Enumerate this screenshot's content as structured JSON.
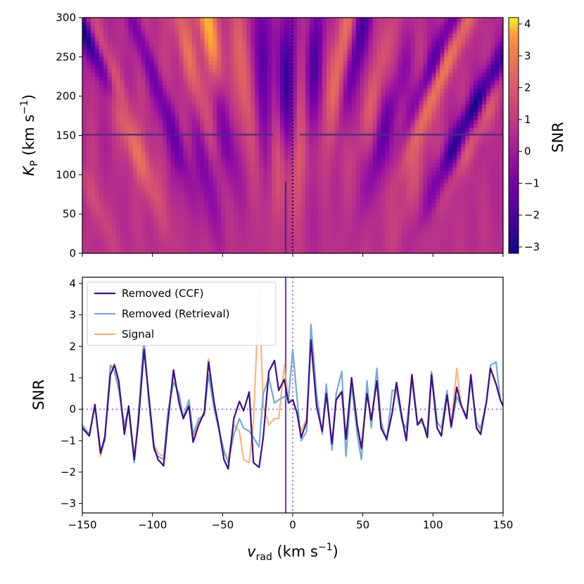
{
  "chart_data": [
    {
      "type": "heatmap",
      "title": "",
      "xlabel": "",
      "ylabel_main": "K",
      "ylabel_sub": "P",
      "ylabel_unit_pre": "(km s",
      "ylabel_unit_sup": "−1",
      "ylabel_unit_post": ")",
      "xlim": [
        -150,
        150
      ],
      "ylim": [
        0,
        300
      ],
      "x_ticks": [
        -150,
        -100,
        -50,
        0,
        50,
        100,
        150
      ],
      "y_ticks": [
        "0",
        "50",
        "100",
        "150",
        "200",
        "250",
        "300"
      ],
      "y_tick_values": [
        0,
        50,
        100,
        150,
        200,
        250,
        300
      ],
      "colormap": "plasma",
      "colorbar": {
        "label": "SNR",
        "range": [
          -3.2,
          4.2
        ],
        "ticks": [
          "−3",
          "−2",
          "−1",
          "0",
          "1",
          "2",
          "3",
          "4"
        ],
        "tick_values": [
          -3,
          -2,
          -1,
          0,
          1,
          2,
          3,
          4
        ]
      },
      "crosshair": {
        "kp": 151,
        "vrad_solid": -5,
        "vrad_dotted": 0,
        "gap_left": -14,
        "gap_right": 5,
        "vertical_max_kp": 92
      },
      "hot_spots": [
        {
          "v": -60,
          "kp": 290,
          "amp": 3.8
        },
        {
          "v": -96,
          "kp": 230,
          "amp": 2.2
        },
        {
          "v": -75,
          "kp": 255,
          "amp": 1.8
        },
        {
          "v": -123,
          "kp": 200,
          "amp": 1.6
        },
        {
          "v": -110,
          "kp": 120,
          "amp": 1.5
        },
        {
          "v": -35,
          "kp": 240,
          "amp": 1.6
        },
        {
          "v": -10,
          "kp": 110,
          "amp": 1.3
        },
        {
          "v": 5,
          "kp": 130,
          "amp": 1.5
        },
        {
          "v": 35,
          "kp": 260,
          "amp": 1.8
        },
        {
          "v": 25,
          "kp": 110,
          "amp": 1.2
        },
        {
          "v": 60,
          "kp": 220,
          "amp": 1.1
        },
        {
          "v": 95,
          "kp": 180,
          "amp": 1.3
        },
        {
          "v": 120,
          "kp": 280,
          "amp": 1.4
        },
        {
          "v": 130,
          "kp": 150,
          "amp": 1.1
        },
        {
          "v": -140,
          "kp": 60,
          "amp": 0.9
        },
        {
          "v": 80,
          "kp": 60,
          "amp": 0.8
        }
      ],
      "cold_spots": [
        {
          "v": -145,
          "kp": 270,
          "amp": -3.0
        },
        {
          "v": -105,
          "kp": 260,
          "amp": -2.2
        },
        {
          "v": -85,
          "kp": 160,
          "amp": -2.0
        },
        {
          "v": -50,
          "kp": 180,
          "amp": -1.8
        },
        {
          "v": -22,
          "kp": 250,
          "amp": -2.1
        },
        {
          "v": -5,
          "kp": 220,
          "amp": -2.6
        },
        {
          "v": 15,
          "kp": 240,
          "amp": -2.0
        },
        {
          "v": 47,
          "kp": 270,
          "amp": -2.2
        },
        {
          "v": 65,
          "kp": 150,
          "amp": -1.6
        },
        {
          "v": 105,
          "kp": 260,
          "amp": -2.0
        },
        {
          "v": 112,
          "kp": 120,
          "amp": -1.8
        },
        {
          "v": 143,
          "kp": 230,
          "amp": -2.0
        },
        {
          "v": 20,
          "kp": 60,
          "amp": -1.2
        },
        {
          "v": -60,
          "kp": 80,
          "amp": -1.3
        }
      ]
    },
    {
      "type": "line",
      "title": "",
      "xlabel_main": "v",
      "xlabel_sub": "rad",
      "xlabel_unit_pre": "(km s",
      "xlabel_unit_sup": "−1",
      "xlabel_unit_post": ")",
      "ylabel": "SNR",
      "xlim": [
        -150,
        150
      ],
      "ylim": [
        -3.3,
        4.2
      ],
      "x_ticks": [
        "−150",
        "−100",
        "−50",
        "0",
        "50",
        "100",
        "150"
      ],
      "x_tick_values": [
        -150,
        -100,
        -50,
        0,
        50,
        100,
        150
      ],
      "y_ticks": [
        "−3",
        "−2",
        "−1",
        "0",
        "1",
        "2",
        "3",
        "4"
      ],
      "y_tick_values": [
        -3,
        -2,
        -1,
        0,
        1,
        2,
        3,
        4
      ],
      "legend_position": "top-left",
      "reference_lines": {
        "solid_x": -5,
        "dotted_x": 0,
        "dotted_y": 0
      },
      "x": [
        -150,
        -145,
        -141,
        -137,
        -134,
        -130,
        -127,
        -124,
        -120,
        -117,
        -113,
        -110,
        -106,
        -103,
        -99,
        -96,
        -92,
        -89,
        -85,
        -81,
        -78,
        -74,
        -71,
        -67,
        -63,
        -60,
        -56,
        -53,
        -49,
        -46,
        -42,
        -38,
        -35,
        -31,
        -28,
        -24,
        -21,
        -17,
        -13,
        -10,
        -6,
        -3,
        0,
        3,
        6,
        10,
        13,
        17,
        21,
        24,
        28,
        31,
        35,
        38,
        42,
        46,
        49,
        53,
        56,
        60,
        63,
        67,
        71,
        74,
        78,
        81,
        85,
        89,
        92,
        96,
        99,
        103,
        106,
        110,
        113,
        117,
        120,
        124,
        127,
        131,
        134,
        138,
        141,
        145,
        148,
        150
      ],
      "series": [
        {
          "name": "Removed (CCF)",
          "color": "#3f0d8a",
          "values": [
            -0.6,
            -0.85,
            0.15,
            -1.4,
            -0.9,
            1.1,
            1.4,
            0.9,
            -0.8,
            0.1,
            -1.6,
            -0.4,
            1.9,
            0.6,
            -1.2,
            -1.6,
            -1.8,
            -0.4,
            1.25,
            0.2,
            -0.3,
            0.1,
            -1.05,
            -0.5,
            -0.1,
            1.5,
            0.2,
            -0.5,
            -1.6,
            -1.9,
            -0.3,
            0.25,
            -0.05,
            0.55,
            -1.7,
            -1.85,
            -0.9,
            1.2,
            1.55,
            0.6,
            0.95,
            0.2,
            0.3,
            -0.1,
            -0.9,
            -0.4,
            2.2,
            0.1,
            -0.7,
            0.5,
            -1.1,
            0.3,
            0.55,
            -0.95,
            1.0,
            -0.5,
            -1.25,
            0.5,
            -0.35,
            0.9,
            -0.6,
            -0.95,
            -0.1,
            0.85,
            -0.3,
            -1.0,
            1.1,
            -0.5,
            -0.3,
            -0.9,
            1.1,
            -0.6,
            -0.85,
            0.45,
            -0.55,
            0.7,
            0.15,
            -0.3,
            1.1,
            -0.6,
            -0.8,
            0.2,
            1.3,
            0.8,
            0.3,
            0.1
          ]
        },
        {
          "name": "Removed (Retrieval)",
          "color": "#74aad4",
          "values": [
            -0.5,
            -0.8,
            0.1,
            -1.3,
            -1.0,
            1.4,
            1.2,
            0.6,
            -0.5,
            0.0,
            -1.7,
            -0.2,
            2.3,
            0.4,
            -1.3,
            -1.5,
            -1.6,
            -0.1,
            0.85,
            0.5,
            -0.3,
            0.3,
            -0.8,
            -0.3,
            -0.2,
            1.1,
            0.0,
            -0.6,
            -1.3,
            -1.7,
            -0.8,
            -0.3,
            -0.6,
            -0.7,
            -0.9,
            -1.2,
            0.5,
            1.0,
            0.2,
            0.3,
            0.4,
            0.3,
            1.9,
            0.4,
            -1.0,
            -0.7,
            2.7,
            0.5,
            -0.8,
            0.8,
            -1.3,
            0.5,
            1.2,
            -1.5,
            0.8,
            -0.8,
            -1.6,
            0.9,
            -0.6,
            1.3,
            -0.4,
            -1.0,
            0.6,
            0.6,
            -0.4,
            -0.6,
            0.9,
            -0.5,
            -0.4,
            -0.7,
            1.2,
            -0.4,
            -0.6,
            0.6,
            -0.6,
            0.4,
            0.1,
            -0.2,
            0.9,
            -0.4,
            -0.6,
            0.2,
            1.4,
            1.5,
            0.3,
            0.1
          ]
        },
        {
          "name": "Signal",
          "color": "#f8ae6b",
          "values": [
            -0.55,
            -0.8,
            0.15,
            -1.5,
            -1.0,
            1.3,
            1.45,
            0.8,
            -0.6,
            0.05,
            -1.5,
            -0.3,
            2.1,
            0.5,
            -1.1,
            -1.4,
            -1.5,
            -0.2,
            1.1,
            0.3,
            -0.2,
            0.15,
            -0.9,
            -0.4,
            -0.1,
            1.6,
            0.1,
            -0.5,
            -1.4,
            -1.6,
            -0.5,
            -0.7,
            -1.6,
            -1.7,
            -0.4,
            3.8,
            0.1,
            -0.5,
            -0.3,
            -0.3,
            1.4,
            0.3,
            0.3,
            -0.1,
            -0.7,
            -0.3,
            2.3,
            0.2,
            -0.7,
            0.5,
            -1.1,
            0.3,
            0.6,
            -0.9,
            1.0,
            -0.5,
            -1.2,
            0.5,
            -0.3,
            0.9,
            -0.6,
            -0.9,
            -0.1,
            0.8,
            -0.3,
            -0.9,
            1.1,
            -0.5,
            -0.3,
            -0.9,
            1.1,
            -0.6,
            -0.8,
            0.5,
            -0.5,
            1.3,
            0.1,
            -0.3,
            1.0,
            -0.5,
            -0.7,
            0.2,
            1.3,
            0.8,
            0.3,
            0.1
          ]
        }
      ]
    }
  ]
}
